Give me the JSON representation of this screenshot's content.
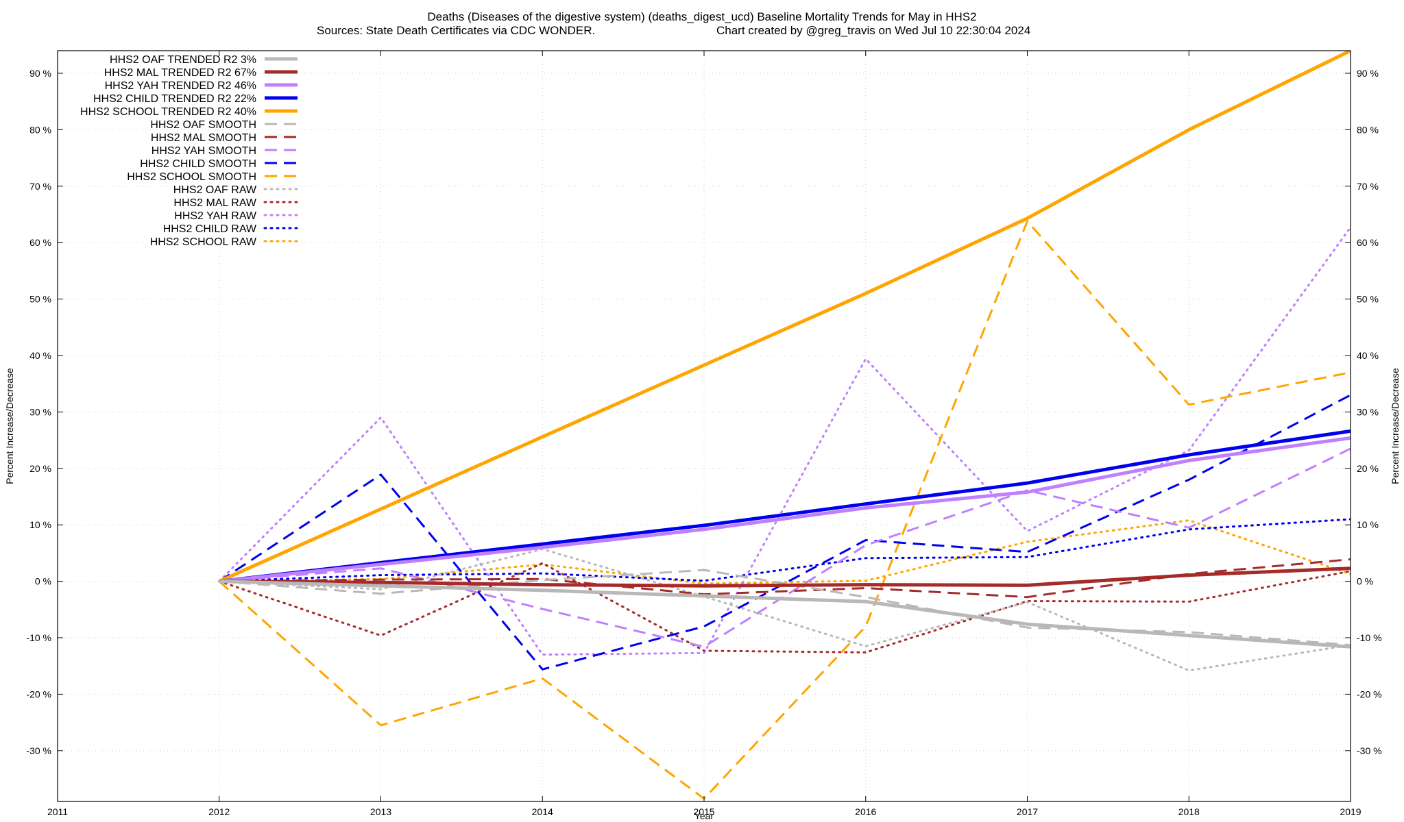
{
  "header": {
    "title_line1": "Deaths (Diseases of the digestive system) (deaths_digest_ucd)  Baseline Mortality Trends for May in HHS2",
    "title_line2_left": "Sources: State Death Certificates via CDC WONDER.",
    "title_line2_right": "Chart created by @greg_travis on Wed Jul 10 22:30:04 2024"
  },
  "chart_data": {
    "type": "line",
    "xlabel": "Year",
    "ylabel": "Percent Increase/Decrease",
    "xlim": [
      2011,
      2019
    ],
    "ylim": [
      -39,
      94
    ],
    "x_ticks": [
      2011,
      2012,
      2013,
      2014,
      2015,
      2016,
      2017,
      2018,
      2019
    ],
    "y_ticks": [
      -30,
      -20,
      -10,
      0,
      10,
      20,
      30,
      40,
      50,
      60,
      70,
      80,
      90
    ],
    "y_tick_suffix": " %",
    "grid": true,
    "legend_placement": "top-left",
    "x": [
      2012,
      2013,
      2014,
      2015,
      2016,
      2017,
      2018,
      2019
    ],
    "series": [
      {
        "name": "HHS2 OAF TRENDED R2  3%",
        "style": "solid",
        "color": "#b8b8b8",
        "width": 5,
        "values": [
          0,
          -0.8,
          -1.6,
          -2.6,
          -3.6,
          -7.6,
          -9.6,
          -11.6
        ]
      },
      {
        "name": "HHS2 MAL TRENDED R2  67%",
        "style": "solid",
        "color": "#a52a2a",
        "width": 5,
        "values": [
          0,
          -0.2,
          -0.6,
          -0.8,
          -0.6,
          -0.7,
          1.1,
          2.3
        ]
      },
      {
        "name": "HHS2 YAH TRENDED R2  46%",
        "style": "solid",
        "color": "#bf7fff",
        "width": 5,
        "values": [
          0,
          3,
          6,
          9.2,
          13,
          15.8,
          21.4,
          25.4
        ]
      },
      {
        "name": "HHS2 CHILD TRENDED R2  22%",
        "style": "solid",
        "color": "#0000ee",
        "width": 5,
        "values": [
          0,
          3.3,
          6.6,
          9.9,
          13.7,
          17.4,
          22.4,
          26.6
        ]
      },
      {
        "name": "HHS2 SCHOOL TRENDED R2  40%",
        "style": "solid",
        "color": "#ffa500",
        "width": 5,
        "values": [
          0,
          12.8,
          25.6,
          38.3,
          51,
          64.3,
          80,
          94
        ]
      },
      {
        "name": "HHS2 OAF SMOOTH",
        "style": "dashed",
        "color": "#b8b8b8",
        "width": 3,
        "values": [
          0,
          -2.2,
          0.2,
          2,
          -2.8,
          -8.2,
          -9,
          -11.3
        ]
      },
      {
        "name": "HHS2 MAL SMOOTH",
        "style": "dashed",
        "color": "#a52a2a",
        "width": 3,
        "values": [
          0,
          0.3,
          0.4,
          -2.3,
          -1.2,
          -2.8,
          1.3,
          3.9
        ]
      },
      {
        "name": "HHS2 YAH SMOOTH",
        "style": "dashed",
        "color": "#bf7fff",
        "width": 3,
        "values": [
          0,
          2.3,
          -4.9,
          -11.6,
          6.4,
          16.1,
          9.5,
          23.5
        ]
      },
      {
        "name": "HHS2 CHILD SMOOTH",
        "style": "dashed",
        "color": "#0000ee",
        "width": 3,
        "values": [
          0,
          18.9,
          -15.6,
          -8,
          7.3,
          5.2,
          18,
          33
        ]
      },
      {
        "name": "HHS2 SCHOOL SMOOTH",
        "style": "dashed",
        "color": "#ffa500",
        "width": 3,
        "values": [
          0,
          -25.5,
          -17.2,
          -38.5,
          -8,
          63.8,
          31.3,
          37
        ]
      },
      {
        "name": "HHS2 OAF RAW",
        "style": "dotted",
        "color": "#b8b8b8",
        "width": 3,
        "values": [
          0,
          -1.4,
          5.7,
          -2.7,
          -11.5,
          -3.7,
          -15.8,
          -11.3
        ]
      },
      {
        "name": "HHS2 MAL RAW",
        "style": "dotted",
        "color": "#a52a2a",
        "width": 3,
        "values": [
          0,
          -9.6,
          3.2,
          -12.3,
          -12.6,
          -3.5,
          -3.6,
          1.8
        ]
      },
      {
        "name": "HHS2 YAH RAW",
        "style": "dotted",
        "color": "#bf7fff",
        "width": 3,
        "values": [
          0,
          29,
          -13,
          -12.7,
          39.4,
          8.9,
          23.2,
          62.7
        ]
      },
      {
        "name": "HHS2 CHILD RAW",
        "style": "dotted",
        "color": "#0000ee",
        "width": 3,
        "values": [
          0,
          1.1,
          1.4,
          0.1,
          4.1,
          4.3,
          9.2,
          11
        ]
      },
      {
        "name": "HHS2 SCHOOL RAW",
        "style": "dotted",
        "color": "#ffa500",
        "width": 3,
        "values": [
          0,
          0.4,
          3,
          -0.4,
          0.1,
          7,
          10.8,
          1.3
        ]
      }
    ]
  }
}
